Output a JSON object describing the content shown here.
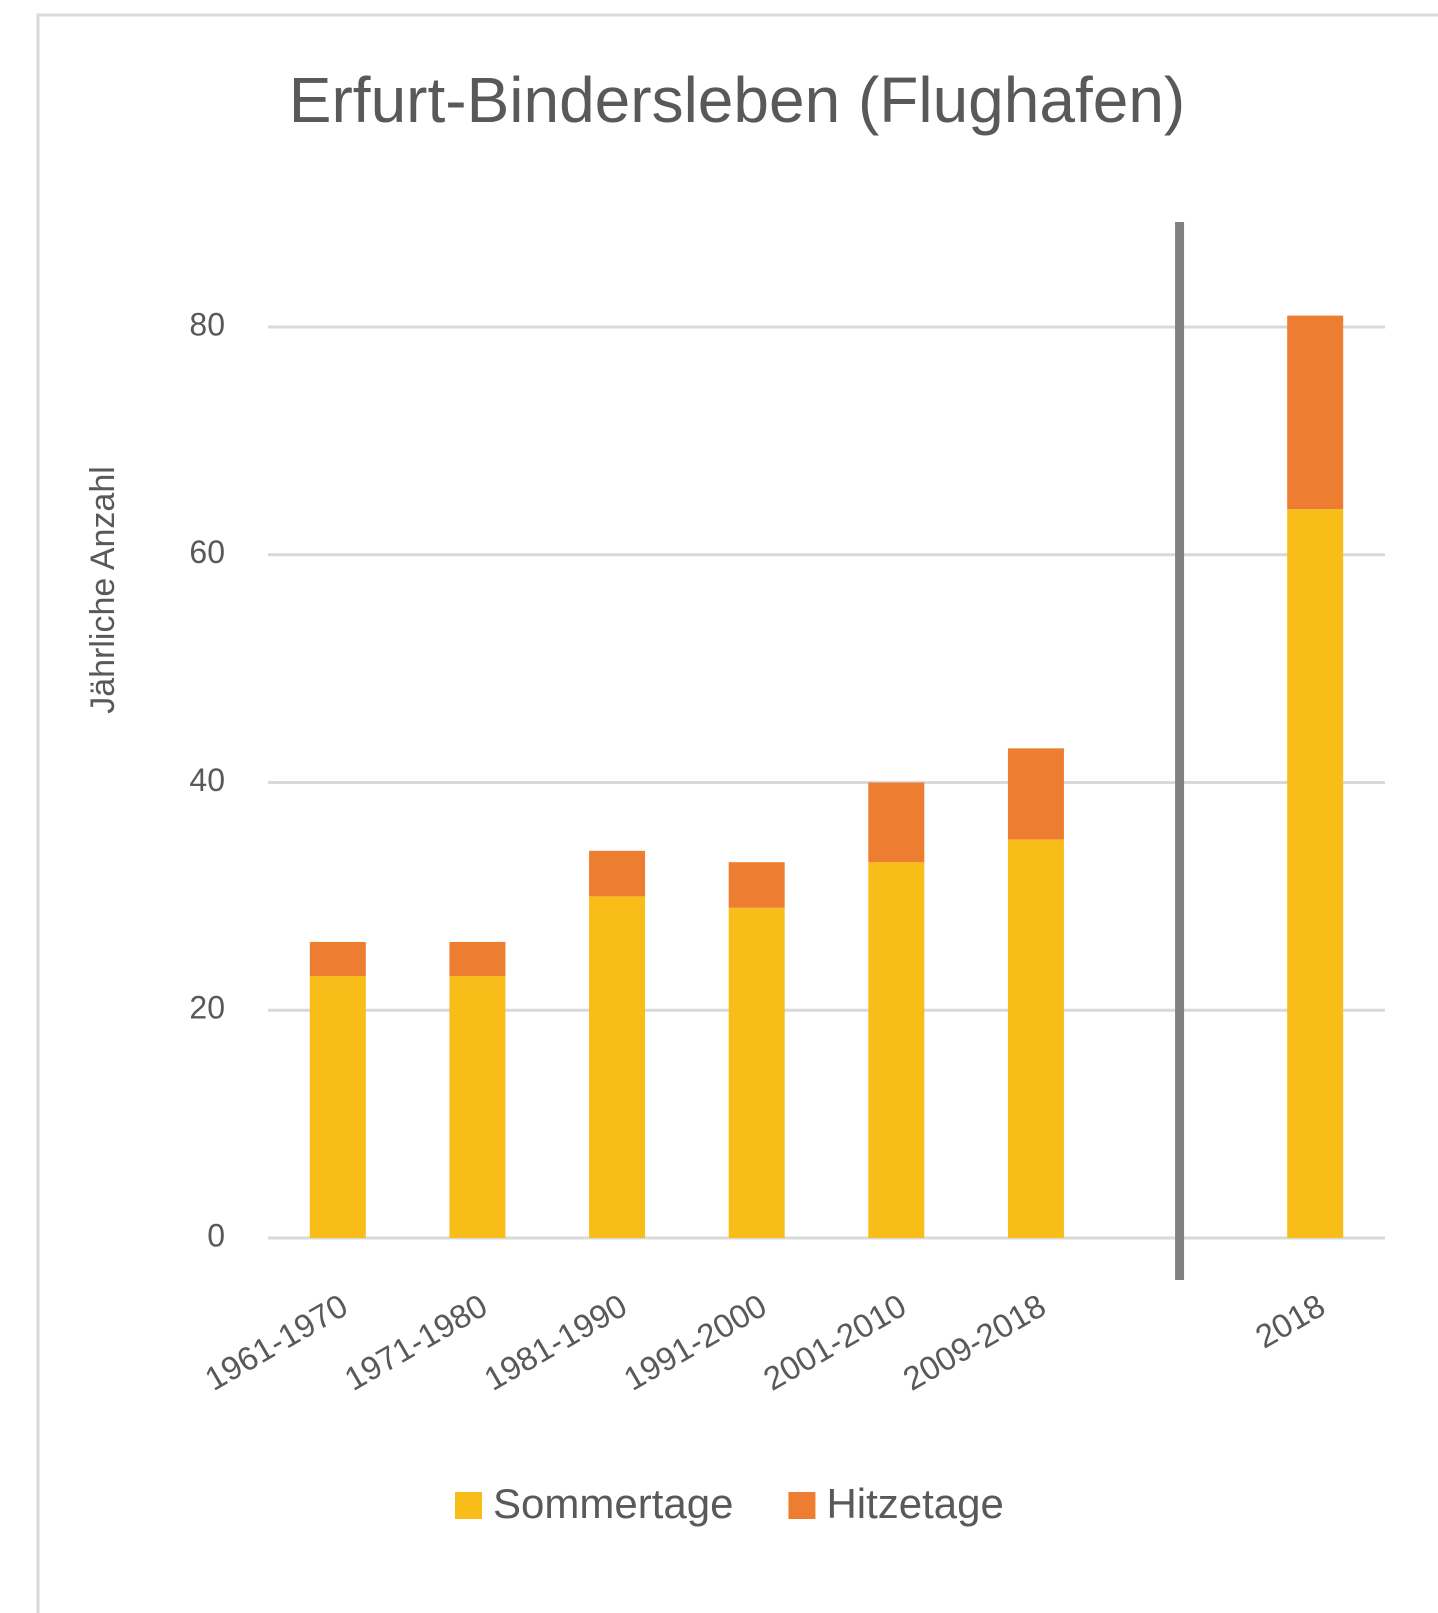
{
  "chart_data": {
    "type": "bar",
    "stacked": true,
    "title": "Erfurt-Bindersleben (Flughafen)",
    "y_label": "Jährliche Anzahl",
    "categories": [
      "1961-1970",
      "1971-1980",
      "1981-1990",
      "1991-2000",
      "2001-2010",
      "2009-2018",
      null,
      "2018"
    ],
    "series": [
      {
        "name": "Sommertage",
        "color": "#f9bd19",
        "values": [
          23,
          23,
          30,
          29,
          33,
          35,
          null,
          64
        ]
      },
      {
        "name": "Hitzetage",
        "color": "#ed7d31",
        "values": [
          3,
          3,
          4,
          4,
          7,
          8,
          null,
          17
        ]
      }
    ],
    "ylim": [
      0,
      80
    ],
    "yticks": [
      0,
      20,
      40,
      60,
      80
    ],
    "grid": true
  }
}
